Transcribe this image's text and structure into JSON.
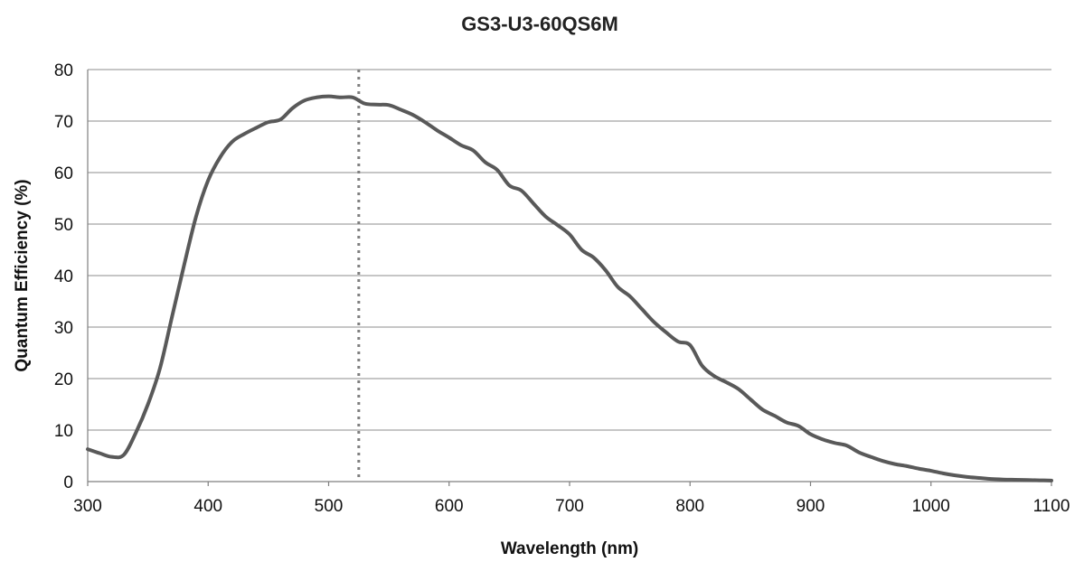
{
  "chart_data": {
    "type": "line",
    "title": "GS3-U3-60QS6M",
    "xlabel": "Wavelength (nm)",
    "ylabel": "Quantum Efficiency (%)",
    "xlim": [
      300,
      1100
    ],
    "ylim": [
      0,
      80
    ],
    "x_ticks": [
      "300",
      "400",
      "500",
      "600",
      "700",
      "800",
      "900",
      "1000",
      "1100"
    ],
    "y_ticks": [
      "0",
      "10",
      "20",
      "30",
      "40",
      "50",
      "60",
      "70",
      "80"
    ],
    "grid": "horizontal",
    "legend": "none",
    "colors": {
      "series": "#595959",
      "marker": "#7f7f7f",
      "grid": "#8c8c8c"
    },
    "series": [
      {
        "x": [
          300,
          310,
          320,
          330,
          340,
          350,
          360,
          370,
          380,
          390,
          400,
          410,
          420,
          430,
          440,
          450,
          460,
          470,
          480,
          490,
          500,
          510,
          520,
          530,
          540,
          550,
          560,
          570,
          580,
          590,
          600,
          610,
          620,
          630,
          640,
          650,
          660,
          670,
          680,
          690,
          700,
          710,
          720,
          730,
          740,
          750,
          760,
          770,
          780,
          790,
          800,
          810,
          820,
          830,
          840,
          850,
          860,
          870,
          880,
          890,
          900,
          910,
          920,
          930,
          940,
          950,
          960,
          970,
          980,
          990,
          1000,
          1010,
          1020,
          1030,
          1040,
          1050,
          1060,
          1070,
          1080,
          1090,
          1100
        ],
        "values": [
          6.3,
          5.5,
          4.8,
          5.2,
          9.5,
          15,
          22,
          32,
          42,
          51.5,
          58.5,
          63,
          66,
          67.5,
          68.7,
          69.8,
          70.3,
          72.5,
          74,
          74.6,
          74.8,
          74.6,
          74.6,
          73.4,
          73.2,
          73.1,
          72.2,
          71.2,
          69.8,
          68.2,
          66.8,
          65.3,
          64.3,
          62,
          60.5,
          57.5,
          56.5,
          54,
          51.5,
          49.8,
          48,
          45,
          43.5,
          41,
          37.8,
          36,
          33.5,
          31,
          29,
          27.2,
          26.5,
          22.5,
          20.5,
          19.3,
          18,
          16,
          14,
          12.8,
          11.5,
          10.8,
          9.2,
          8.2,
          7.5,
          7,
          5.7,
          4.8,
          4,
          3.4,
          3,
          2.5,
          2.1,
          1.6,
          1.2,
          0.9,
          0.7,
          0.5,
          0.4,
          0.35,
          0.3,
          0.25,
          0.2
        ]
      }
    ],
    "reference_line": {
      "x": 525,
      "style": "dotted"
    }
  }
}
